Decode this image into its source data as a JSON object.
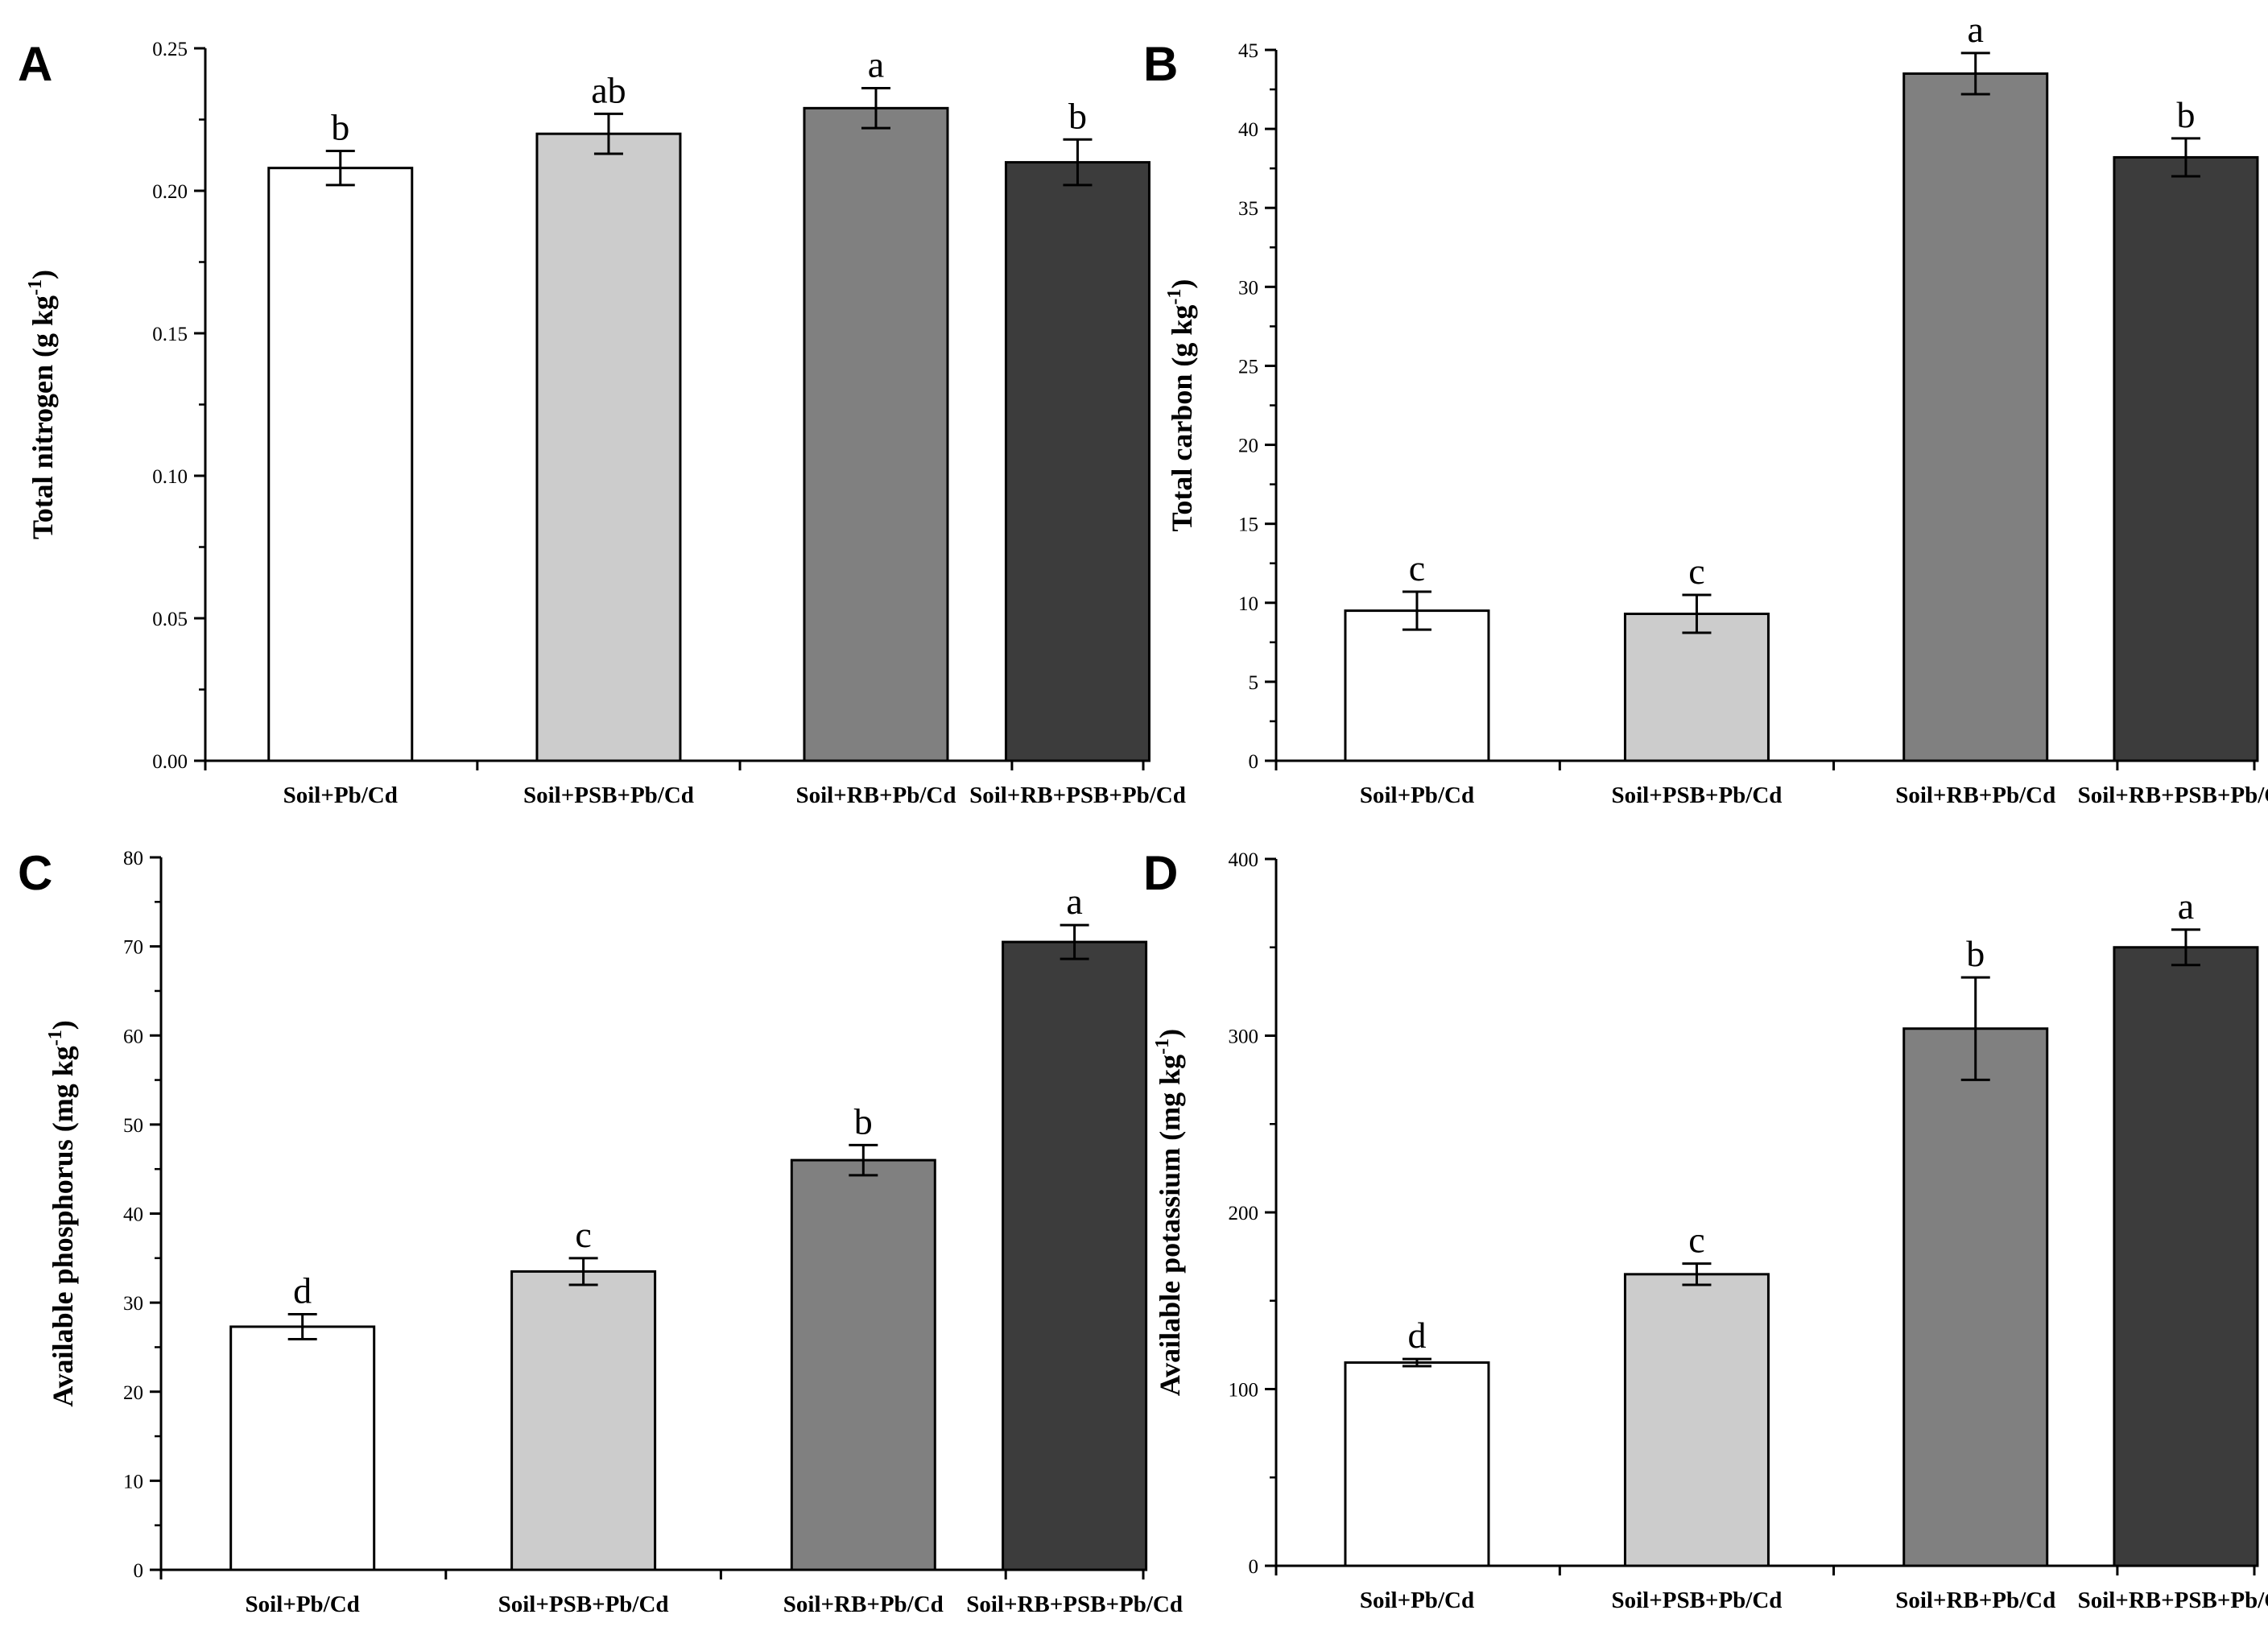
{
  "chart_data": [
    {
      "panel": "A",
      "type": "bar",
      "ylabel": "Total nitrogen (g kg",
      "ylabel_sup": "-1",
      "ylabel_close": ")",
      "categories": [
        "Soil+Pb/Cd",
        "Soil+PSB+Pb/Cd",
        "Soil+RB+Pb/Cd",
        "Soil+RB+PSB+Pb/Cd"
      ],
      "values": [
        0.208,
        0.22,
        0.229,
        0.21
      ],
      "errors": [
        0.006,
        0.007,
        0.007,
        0.008
      ],
      "letters": [
        "b",
        "ab",
        "a",
        "b"
      ],
      "ylim": [
        0,
        0.25
      ],
      "yticks": [
        0,
        0.05,
        0.1,
        0.15,
        0.2,
        0.25
      ],
      "ytick_labels": [
        "0.00",
        "0.05",
        "0.10",
        "0.15",
        "0.20",
        "0.25"
      ]
    },
    {
      "panel": "B",
      "type": "bar",
      "ylabel": "Total carbon (g kg",
      "ylabel_sup": "-1",
      "ylabel_close": ")",
      "categories": [
        "Soil+Pb/Cd",
        "Soil+PSB+Pb/Cd",
        "Soil+RB+Pb/Cd",
        "Soil+RB+PSB+Pb/Cd"
      ],
      "values": [
        9.5,
        9.3,
        43.5,
        38.2
      ],
      "errors": [
        1.2,
        1.2,
        1.3,
        1.2
      ],
      "letters": [
        "c",
        "c",
        "a",
        "b"
      ],
      "ylim": [
        0,
        45
      ],
      "yticks": [
        0,
        5,
        10,
        15,
        20,
        25,
        30,
        35,
        40,
        45
      ],
      "ytick_labels": [
        "0",
        "5",
        "10",
        "15",
        "20",
        "25",
        "30",
        "35",
        "40",
        "45"
      ]
    },
    {
      "panel": "C",
      "type": "bar",
      "ylabel": "Available phosphorus (mg kg",
      "ylabel_sup": "-1",
      "ylabel_close": ")",
      "categories": [
        "Soil+Pb/Cd",
        "Soil+PSB+Pb/Cd",
        "Soil+RB+Pb/Cd",
        "Soil+RB+PSB+Pb/Cd"
      ],
      "values": [
        27.3,
        33.5,
        46.0,
        70.5
      ],
      "errors": [
        1.4,
        1.5,
        1.7,
        1.9
      ],
      "letters": [
        "d",
        "c",
        "b",
        "a"
      ],
      "ylim": [
        0,
        80
      ],
      "yticks": [
        0,
        10,
        20,
        30,
        40,
        50,
        60,
        70,
        80
      ],
      "ytick_labels": [
        "0",
        "10",
        "20",
        "30",
        "40",
        "50",
        "60",
        "70",
        "80"
      ]
    },
    {
      "panel": "D",
      "type": "bar",
      "ylabel": "Available potassium (mg kg",
      "ylabel_sup": "-1",
      "ylabel_close": ")",
      "categories": [
        "Soil+Pb/Cd",
        "Soil+PSB+Pb/Cd",
        "Soil+RB+Pb/Cd",
        "Soil+RB+PSB+Pb/Cd"
      ],
      "values": [
        115,
        165,
        304,
        350
      ],
      "errors": [
        2,
        6,
        29,
        10
      ],
      "letters": [
        "d",
        "c",
        "b",
        "a"
      ],
      "ylim": [
        0,
        400
      ],
      "yticks": [
        0,
        100,
        200,
        300,
        400
      ],
      "ytick_labels": [
        "0",
        "100",
        "200",
        "300",
        "400"
      ]
    }
  ],
  "style": {
    "bar_colors": [
      "#ffffff",
      "#cccccc",
      "#808080",
      "#3c3c3c"
    ],
    "axis_color": "#000000"
  }
}
